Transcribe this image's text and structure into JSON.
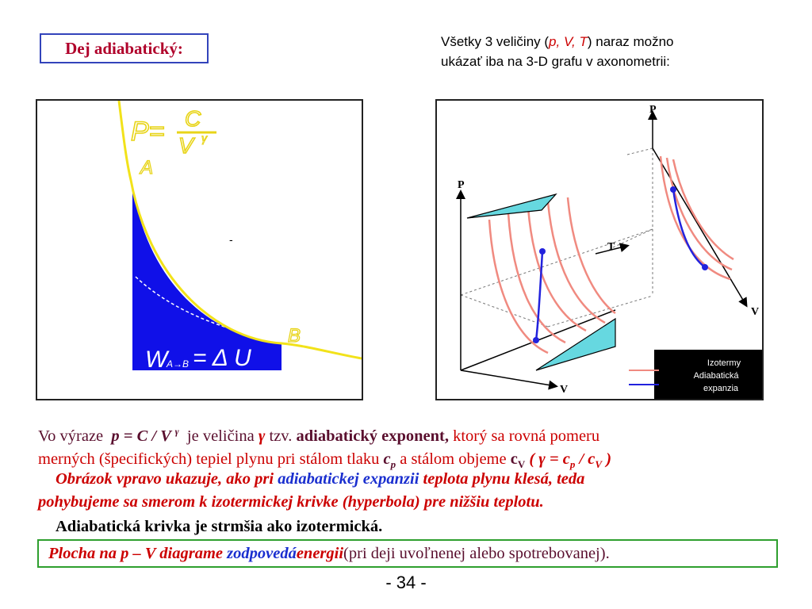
{
  "title": "Dej adiabatický:",
  "intro": {
    "line1_pre": "Všetky 3 veličiny (",
    "line1_vars": "p, V, T",
    "line1_post": ") naraz možno",
    "line2": "ukázať iba na 3-D grafu v axonometrii:"
  },
  "left_figure": {
    "formula_p": "P=",
    "formula_num": "C",
    "formula_den": "V",
    "formula_exp": "γ",
    "label_a": "A",
    "label_b": "B",
    "dash": "-",
    "work_w": "W",
    "work_sub": "A→B",
    "work_rest": "= Δ U",
    "colors": {
      "curve": "#f2e21a",
      "fill": "#1010e8",
      "work_text": "#ffffff"
    }
  },
  "right_figure": {
    "axis_p_left": "P",
    "axis_t": "T",
    "axis_v_left": "V",
    "axis_p_right": "P",
    "axis_v_right": "V",
    "legend": [
      "Izotermy",
      "Adiabatická",
      "expanzia"
    ],
    "colors": {
      "isotherm": "#f08a80",
      "adiabat": "#2222dd",
      "plane": "#66d8e0",
      "legend_bg": "#000000"
    }
  },
  "para1": {
    "s1": "Vo výraze ",
    "expr": "p = C / V ",
    "expr_exp": "γ",
    "s2": " je veličina ",
    "gamma": "γ",
    "s3": " tzv. ",
    "term": "adiabatický exponent,",
    "s4": " ktorý sa rovná pomeru",
    "l2_a": "merných (špecifických) tepiel plynu pri stálom tlaku ",
    "cp_c": "c",
    "cp_sub": "p",
    "l2_b": " a stálom objeme ",
    "cv_c": "c",
    "cv_sub": "V",
    "l2_c": " ( γ = c",
    "l2_sub1": "p",
    "l2_d": " / c",
    "l2_sub2": "V",
    "l2_e": " )"
  },
  "para2": {
    "a": "Obrázok vpravo ukazuje, ako pri ",
    "b": "adiabatickej expanzii",
    "c": " teplota plynu klesá, teda",
    "d": "pohybujeme sa smerom k izotermickej krivke (hyperbola) pre nižšiu teplotu."
  },
  "para3": "Adiabatická krivka je strmšia ako izotermická.",
  "final": {
    "a": "Plocha na p – V diagrame ",
    "b": "zodpovedá",
    "c": " energii",
    "d": " (pri deji uvoľnenej alebo spotrebovanej)."
  },
  "page_number": "-  34  -"
}
